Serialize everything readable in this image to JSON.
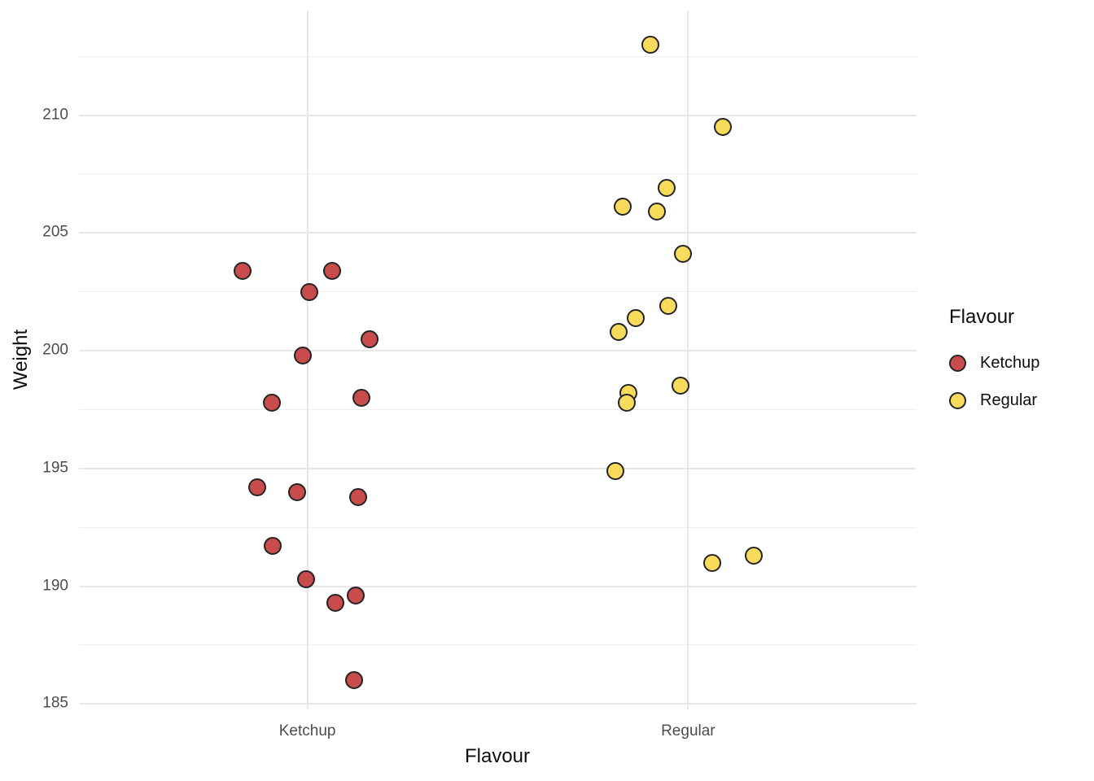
{
  "chart_data": {
    "type": "scatter",
    "subtype": "jittered-strip-plot",
    "title": "",
    "xlabel": "Flavour",
    "ylabel": "Weight",
    "categories": [
      "Ketchup",
      "Regular"
    ],
    "y_ticks": [
      185,
      190,
      195,
      200,
      205,
      210
    ],
    "y_minor_ticks": [
      187.5,
      192.5,
      197.5,
      202.5,
      207.5,
      212.5
    ],
    "ylim": [
      184.77,
      214.44
    ],
    "xlim": [
      0.4,
      2.6
    ],
    "grid": {
      "horizontal": "major+minor",
      "vertical": "category-centers",
      "background": "#ffffff"
    },
    "colors": {
      "ketchup_fill": "#C94C4C",
      "regular_fill": "#F9DB5C",
      "point_stroke": "#242424",
      "gridline": "#E7E7E7",
      "axis_text": "#4D4D4D",
      "title_text": "#0d0d0d"
    },
    "legend": {
      "title": "Flavour",
      "position": "right",
      "entries": [
        {
          "label": "Ketchup",
          "color": "#C94C4C"
        },
        {
          "label": "Regular",
          "color": "#F9DB5C"
        }
      ]
    },
    "series": [
      {
        "name": "Ketchup",
        "fill": "#C94C4C",
        "category_index": 1,
        "points": [
          {
            "weight": 203.4,
            "jitter": -0.17
          },
          {
            "weight": 203.4,
            "jitter": 0.064
          },
          {
            "weight": 202.5,
            "jitter": 0.006
          },
          {
            "weight": 200.5,
            "jitter": 0.163
          },
          {
            "weight": 199.8,
            "jitter": -0.013
          },
          {
            "weight": 198.0,
            "jitter": 0.141
          },
          {
            "weight": 197.8,
            "jitter": -0.093
          },
          {
            "weight": 194.2,
            "jitter": -0.132
          },
          {
            "weight": 194.0,
            "jitter": -0.027
          },
          {
            "weight": 193.8,
            "jitter": 0.133
          },
          {
            "weight": 191.7,
            "jitter": -0.091
          },
          {
            "weight": 190.3,
            "jitter": -0.004
          },
          {
            "weight": 189.6,
            "jitter": 0.126
          },
          {
            "weight": 189.3,
            "jitter": 0.073
          },
          {
            "weight": 186.0,
            "jitter": 0.122
          }
        ]
      },
      {
        "name": "Regular",
        "fill": "#F9DB5C",
        "category_index": 2,
        "points": [
          {
            "weight": 213.0,
            "jitter": -0.1
          },
          {
            "weight": 209.5,
            "jitter": 0.092
          },
          {
            "weight": 206.9,
            "jitter": -0.057
          },
          {
            "weight": 206.1,
            "jitter": -0.171
          },
          {
            "weight": 205.9,
            "jitter": -0.083
          },
          {
            "weight": 204.1,
            "jitter": -0.013
          },
          {
            "weight": 201.9,
            "jitter": -0.052
          },
          {
            "weight": 201.4,
            "jitter": -0.137
          },
          {
            "weight": 200.8,
            "jitter": -0.183
          },
          {
            "weight": 198.5,
            "jitter": -0.019
          },
          {
            "weight": 198.2,
            "jitter": -0.157
          },
          {
            "weight": 197.8,
            "jitter": -0.161
          },
          {
            "weight": 194.9,
            "jitter": -0.191
          },
          {
            "weight": 191.3,
            "jitter": 0.173
          },
          {
            "weight": 191.0,
            "jitter": 0.064
          }
        ]
      }
    ]
  }
}
